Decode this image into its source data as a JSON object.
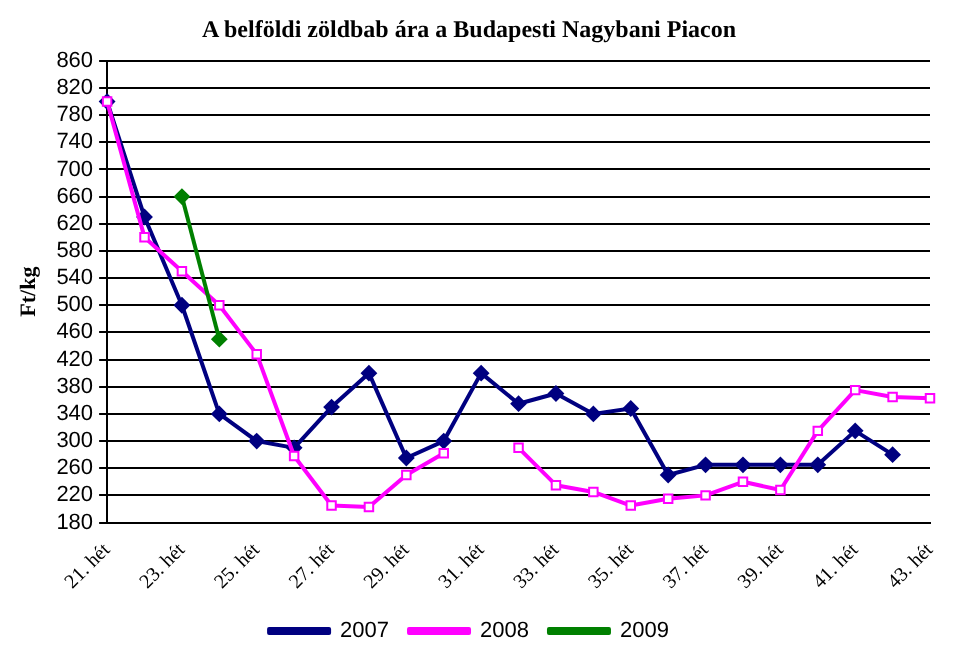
{
  "chart_data": {
    "type": "line",
    "title": "A belföldi zöldbab ára a Budapesti Nagybani Piacon",
    "ylabel": "Ft/kg",
    "categories": [
      "21. hét",
      null,
      "23. hét",
      null,
      "25. hét",
      null,
      "27. hét",
      null,
      "29. hét",
      null,
      "31. hét",
      null,
      "33. hét",
      null,
      "35. hét",
      null,
      "37. hét",
      null,
      "39. hét",
      null,
      "41. hét",
      null,
      "43. hét"
    ],
    "series": [
      {
        "name": "2007",
        "color": "#000080",
        "marker": "diamond",
        "values": [
          800,
          630,
          500,
          340,
          300,
          290,
          350,
          400,
          275,
          300,
          400,
          355,
          370,
          340,
          348,
          250,
          265,
          265,
          265,
          265,
          315,
          280,
          null
        ]
      },
      {
        "name": "2008",
        "color": "#ff00ff",
        "marker": "square",
        "values": [
          800,
          600,
          550,
          500,
          428,
          278,
          205,
          203,
          250,
          282,
          null,
          290,
          235,
          225,
          205,
          215,
          220,
          240,
          228,
          315,
          375,
          365,
          363
        ]
      },
      {
        "name": "2009",
        "color": "#008000",
        "marker": "diamond",
        "values": [
          null,
          null,
          660,
          450,
          null,
          null,
          null,
          null,
          null,
          null,
          null,
          null,
          null,
          null,
          null,
          null,
          null,
          null,
          null,
          null,
          null,
          null,
          null
        ]
      }
    ],
    "ylim": [
      180,
      860
    ],
    "yticks": [
      180,
      220,
      260,
      300,
      340,
      380,
      420,
      460,
      500,
      540,
      580,
      620,
      660,
      700,
      740,
      780,
      820,
      860
    ],
    "grid": "y",
    "legend": "bottom",
    "line_style": "solid"
  }
}
